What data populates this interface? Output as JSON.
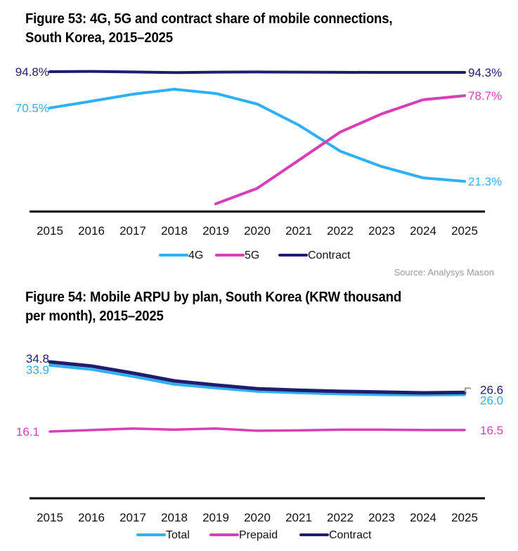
{
  "colors": {
    "blue": "#2fb0f5",
    "magenta": "#d63fb5",
    "navy": "#1f1d6e",
    "axis": "#000000",
    "source": "#9a9a9a"
  },
  "source": "Source: Analysys Mason",
  "chart_data": [
    {
      "type": "line",
      "title": "Figure 53: 4G, 5G and contract share of mobile connections, South Korea, 2015–2025",
      "title_lines": [
        "Figure 53: 4G, 5G and contract share of mobile connections,",
        "South Korea, 2015–2025"
      ],
      "xlabel": "",
      "ylabel": "",
      "ylim": [
        0,
        100
      ],
      "grid": false,
      "legend": "bottom-center",
      "categories": [
        "2015",
        "2016",
        "2017",
        "2018",
        "2019",
        "2020",
        "2021",
        "2022",
        "2023",
        "2024",
        "2025"
      ],
      "series": [
        {
          "name": "4G",
          "color_key": "blue",
          "values": [
            70.5,
            75.0,
            79.7,
            83.0,
            80.2,
            73.1,
            59.0,
            41.5,
            31.2,
            23.6,
            21.3
          ],
          "start_label": "70.5%",
          "end_label": "21.3%"
        },
        {
          "name": "5G",
          "color_key": "magenta",
          "values": [
            null,
            null,
            null,
            null,
            6.2,
            16.6,
            35.4,
            54.3,
            66.5,
            76.0,
            78.7
          ],
          "start_label": "",
          "end_label": "78.7%"
        },
        {
          "name": "Contract",
          "color_key": "navy",
          "values": [
            94.8,
            95.0,
            94.6,
            94.2,
            94.5,
            94.6,
            94.5,
            94.4,
            94.3,
            94.3,
            94.3
          ],
          "start_label": "94.8%",
          "end_label": "94.3%"
        }
      ]
    },
    {
      "type": "line",
      "title": "Figure 54: Mobile ARPU by plan, South Korea (KRW thousand per month), 2015–2025",
      "title_lines": [
        "Figure 54: Mobile ARPU by plan, South Korea (KRW thousand",
        "per month), 2015–2025"
      ],
      "xlabel": "",
      "ylabel": "KRW thousand per month",
      "ylim": [
        0,
        37
      ],
      "grid": false,
      "legend": "bottom-center",
      "categories": [
        "2015",
        "2016",
        "2017",
        "2018",
        "2019",
        "2020",
        "2021",
        "2022",
        "2023",
        "2024",
        "2025"
      ],
      "series": [
        {
          "name": "Total",
          "color_key": "blue",
          "values": [
            33.9,
            32.8,
            30.9,
            28.8,
            27.8,
            26.9,
            26.5,
            26.2,
            26.0,
            25.9,
            26.0
          ],
          "start_label": "33.9",
          "end_label": "26.0"
        },
        {
          "name": "Prepaid",
          "color_key": "magenta",
          "values": [
            16.1,
            16.5,
            16.9,
            16.6,
            16.9,
            16.3,
            16.4,
            16.6,
            16.6,
            16.5,
            16.5
          ],
          "start_label": "16.1",
          "end_label": "16.5"
        },
        {
          "name": "Contract",
          "color_key": "navy",
          "values": [
            34.8,
            33.7,
            31.8,
            29.7,
            28.6,
            27.6,
            27.2,
            26.9,
            26.7,
            26.5,
            26.6
          ],
          "start_label": "34.8",
          "end_label": "26.6"
        }
      ]
    }
  ]
}
